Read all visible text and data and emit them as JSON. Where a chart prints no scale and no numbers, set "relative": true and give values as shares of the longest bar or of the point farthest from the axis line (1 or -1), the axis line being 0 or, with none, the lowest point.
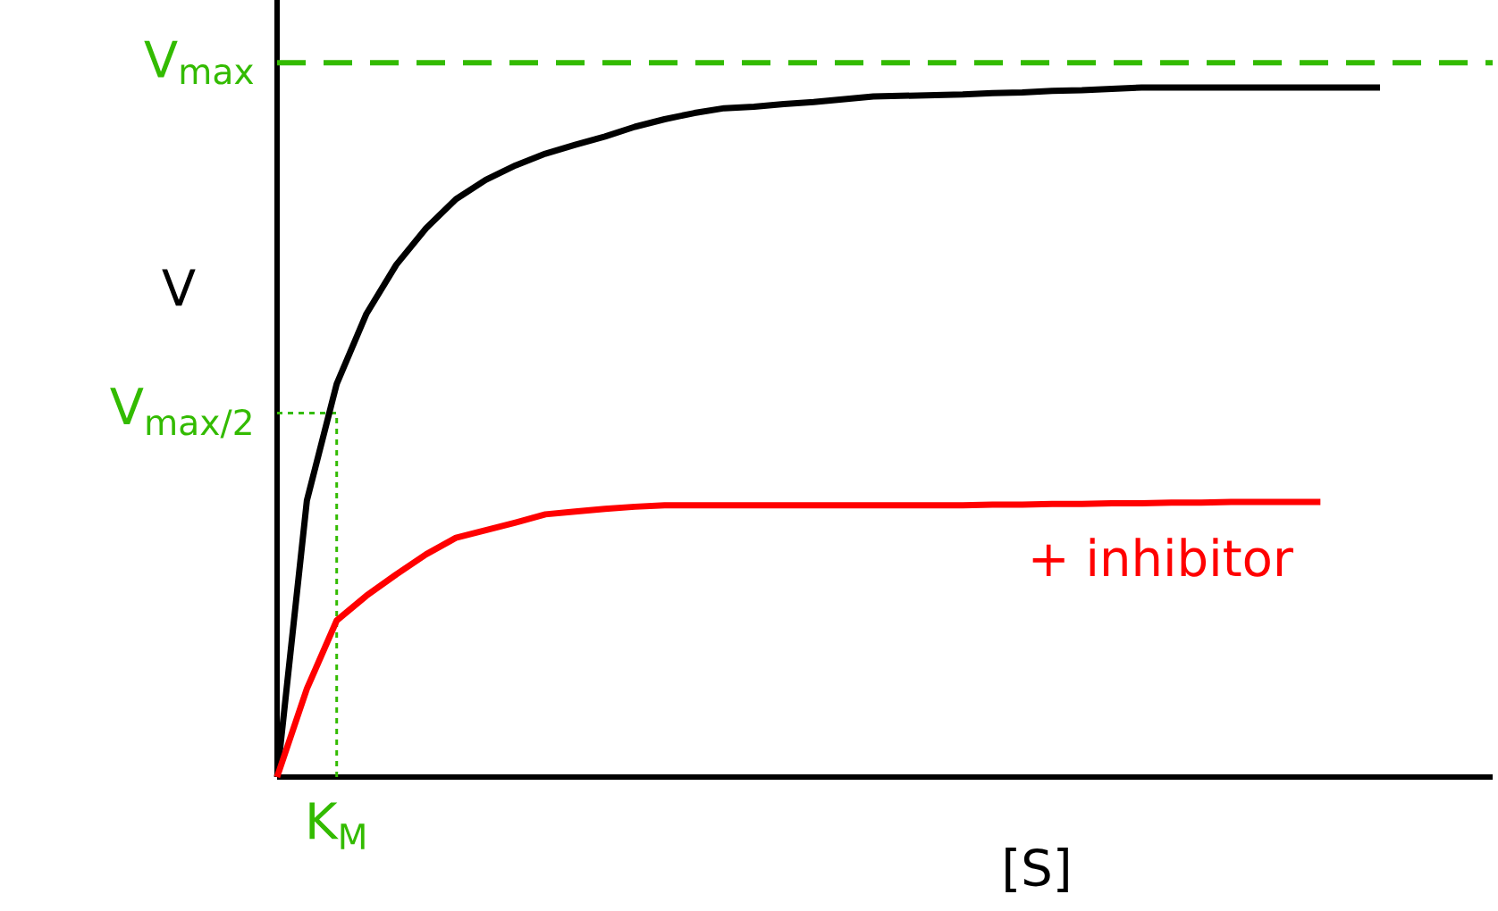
{
  "chart_data": {
    "type": "line",
    "relative": true,
    "xlabel": "[S]",
    "ylabel": "V",
    "marker": "none",
    "line_style": "solid",
    "tick_labels": false,
    "categories": [
      null,
      null,
      null,
      null,
      null,
      null,
      null,
      null,
      null,
      null,
      null,
      null,
      null,
      null,
      null,
      null,
      null,
      null,
      null,
      null,
      null,
      null,
      null,
      null,
      null,
      null,
      null,
      null,
      null,
      null,
      null,
      null,
      null,
      null,
      null,
      null,
      null,
      null
    ],
    "series": [
      {
        "color": "#000000",
        "values": [
          0,
          0.401,
          0.57,
          0.672,
          0.743,
          0.796,
          0.838,
          0.866,
          0.887,
          0.904,
          0.917,
          0.929,
          0.943,
          0.954,
          0.963,
          0.97,
          0.972,
          0.976,
          0.979,
          0.983,
          0.987,
          0.988,
          0.989,
          0.99,
          0.992,
          0.993,
          0.995,
          0.996,
          0.998,
          1,
          1,
          1,
          1,
          1,
          1,
          1,
          1,
          1
        ]
      },
      {
        "name": "+ inhibitor",
        "color": "#ff0000",
        "values": [
          0,
          0.128,
          0.227,
          0.263,
          0.294,
          0.323,
          0.347,
          0.358,
          0.369,
          0.381,
          0.385,
          0.389,
          0.392,
          0.394,
          0.394,
          0.394,
          0.394,
          0.394,
          0.394,
          0.394,
          0.394,
          0.394,
          0.394,
          0.394,
          0.395,
          0.395,
          0.396,
          0.396,
          0.397,
          0.397,
          0.398,
          0.398,
          0.399,
          0.399,
          0.399,
          0.399,
          null,
          null
        ]
      }
    ],
    "ref_lines": [
      {
        "axis": "y",
        "value": 1.036,
        "label": "V$_{max}$",
        "color": "#33bb00",
        "line_style": "dashed"
      },
      {
        "axis": "y",
        "value": 0.528,
        "label": "V$_{max/2}$",
        "color": "#33bb00",
        "line_style": "dotted"
      }
    ],
    "annotations": [
      "K$_{M}$"
    ]
  }
}
